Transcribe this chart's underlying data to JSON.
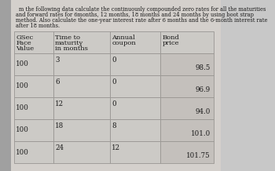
{
  "title_lines": [
    "m the following data calculate the continuously compounded zero rates for all the maturities",
    "and forward rates for 6months, 12 months, 18 months and 24 months by using boot strap",
    "method. Also calculate the one-year interest rate after 6 months and the 6-month interest rate",
    "after 18 months."
  ],
  "col_headers_row1": [
    "",
    "Time to",
    "Annual",
    "Bond"
  ],
  "col_headers_row2": [
    "GSec",
    "maturity",
    "coupon",
    "price"
  ],
  "col_headers_row3": [
    "Face",
    "in months",
    "",
    ""
  ],
  "col_headers_row4": [
    "Value",
    "",
    "",
    ""
  ],
  "rows": [
    [
      "100",
      "3",
      "0",
      "98.5"
    ],
    [
      "100",
      "6",
      "0",
      "96.9"
    ],
    [
      "100",
      "12",
      "0",
      "94.0"
    ],
    [
      "100",
      "18",
      "8",
      "101.0"
    ],
    [
      "100",
      "24",
      "12",
      "101.75"
    ]
  ],
  "page_color": "#c8c8c8",
  "inner_page_color": "#d4d0cc",
  "table_outer_color": "#b8b4b0",
  "cell_bg": "#cccac6",
  "bond_price_bg": "#c4c0bc",
  "header_bg": "#cccac6",
  "line_color": "#999693",
  "text_color": "#1a1a1a",
  "title_fontsize": 4.8,
  "table_fontsize": 6.2,
  "header_fontsize": 6.0
}
